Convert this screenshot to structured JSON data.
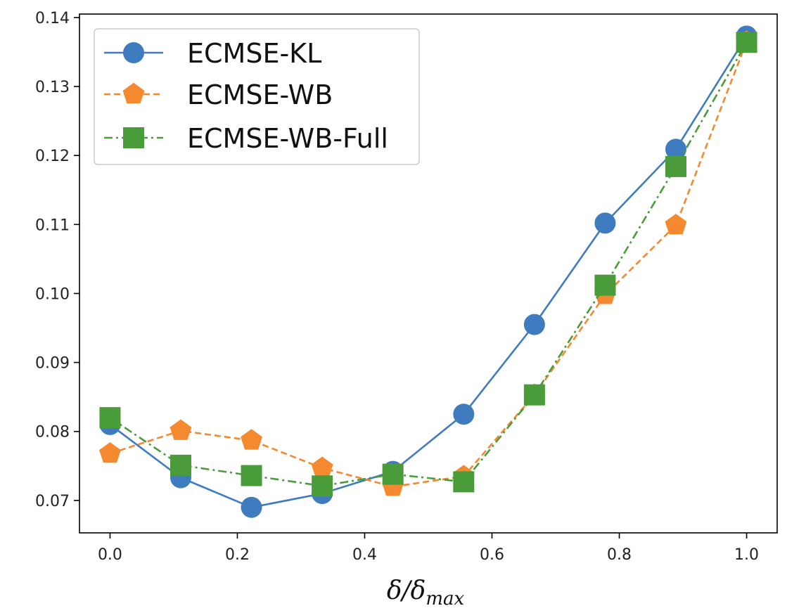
{
  "chart_data": {
    "type": "line",
    "title": "",
    "xlabel": {
      "main": "δ/δ",
      "sub": "max"
    },
    "ylabel": "",
    "x": [
      0.0,
      0.1111,
      0.2222,
      0.3333,
      0.4444,
      0.5556,
      0.6667,
      0.7778,
      0.8889,
      1.0
    ],
    "xlim": [
      -0.048,
      1.048
    ],
    "ylim": [
      0.0653,
      0.1405
    ],
    "x_ticks": [
      0.0,
      0.2,
      0.4,
      0.6,
      0.8,
      1.0
    ],
    "x_tick_labels": [
      "0.0",
      "0.2",
      "0.4",
      "0.6",
      "0.8",
      "1.0"
    ],
    "y_ticks": [
      0.07,
      0.08,
      0.09,
      0.1,
      0.11,
      0.12,
      0.13,
      0.14
    ],
    "y_tick_labels": [
      "0.07",
      "0.08",
      "0.09",
      "0.10",
      "0.11",
      "0.12",
      "0.13",
      "0.14"
    ],
    "grid": false,
    "legend_position": "upper-left",
    "series": [
      {
        "name": "ECMSE-KL",
        "color": "#3f7bbf",
        "line_style": "solid",
        "marker": "circle",
        "values": [
          0.081,
          0.0733,
          0.069,
          0.071,
          0.0742,
          0.0825,
          0.0955,
          0.1102,
          0.1209,
          0.1373
        ]
      },
      {
        "name": "ECMSE-WB",
        "color": "#f5892f",
        "line_style": "dashed",
        "marker": "pentagon",
        "values": [
          0.0768,
          0.0801,
          0.0787,
          0.0747,
          0.072,
          0.0735,
          0.0853,
          0.0998,
          0.1099,
          0.1365
        ]
      },
      {
        "name": "ECMSE-WB-Full",
        "color": "#4a9c3b",
        "line_style": "dashdot",
        "marker": "square",
        "values": [
          0.082,
          0.0751,
          0.0736,
          0.0721,
          0.0738,
          0.0727,
          0.0853,
          0.1012,
          0.1184,
          0.1364
        ]
      }
    ]
  }
}
